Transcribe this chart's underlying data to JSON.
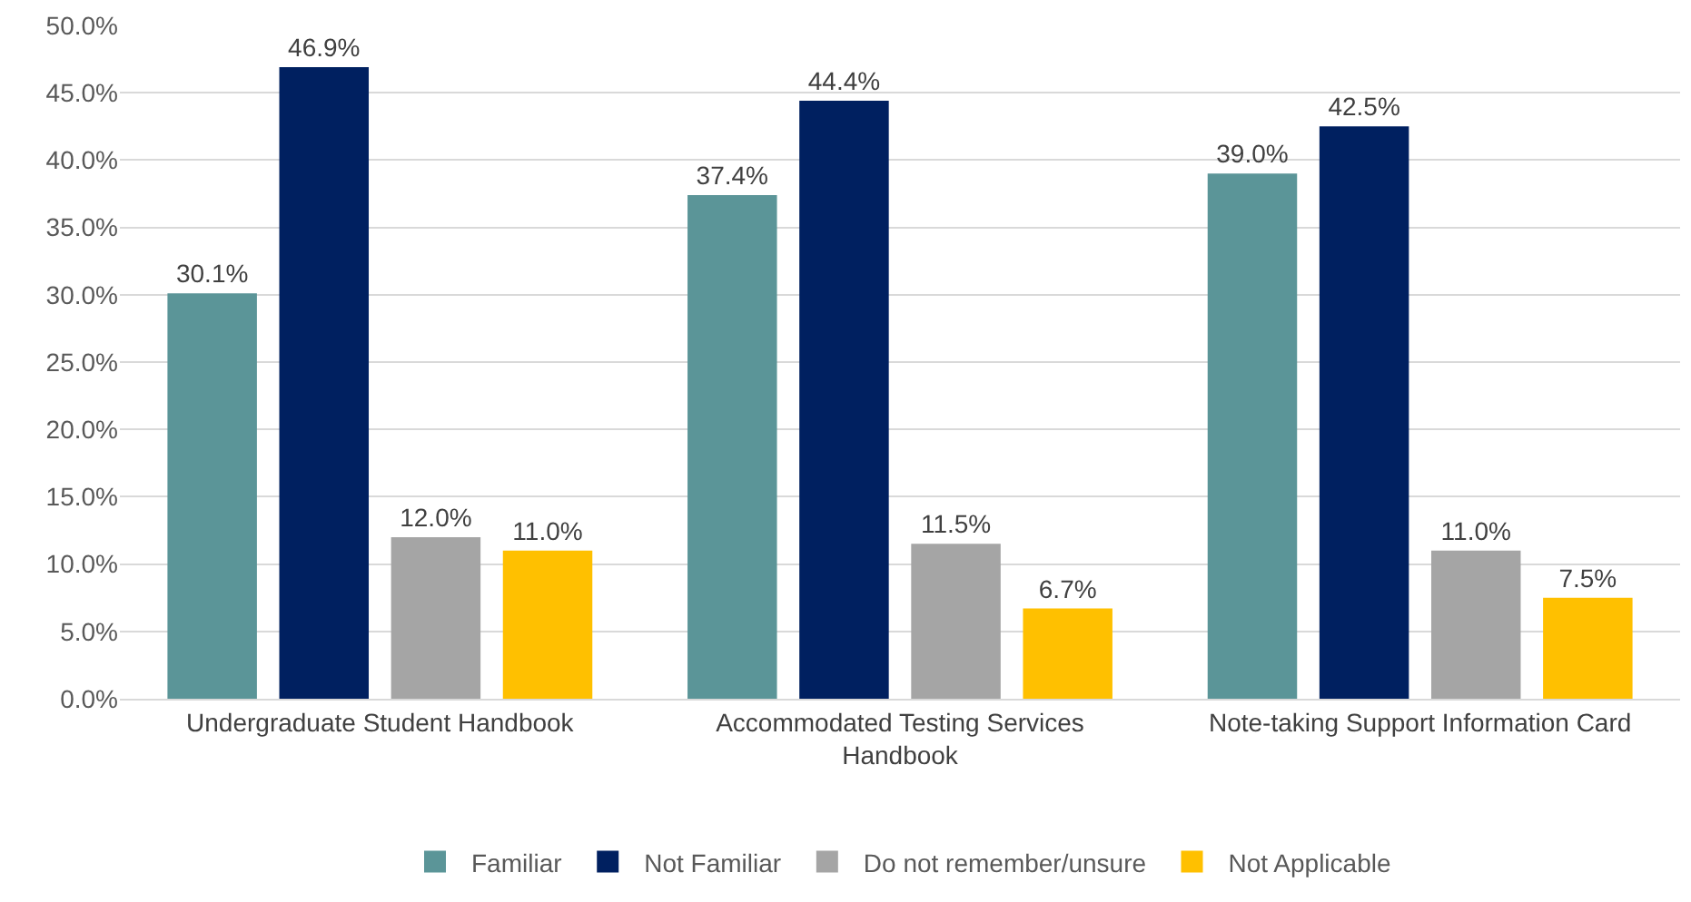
{
  "chart_data": {
    "type": "bar",
    "categories": [
      "Undergraduate Student Handbook",
      "Accommodated Testing Services\nHandbook",
      "Note-taking Support Information Card"
    ],
    "series": [
      {
        "name": "Familiar",
        "color": "#5b9598",
        "values": [
          30.1,
          37.4,
          39.0
        ],
        "value_labels": [
          "30.1%",
          "37.4%",
          "39.0%"
        ]
      },
      {
        "name": "Not Familiar",
        "color": "#002060",
        "values": [
          46.9,
          44.4,
          42.5
        ],
        "value_labels": [
          "46.9%",
          "44.4%",
          "42.5%"
        ]
      },
      {
        "name": "Do not remember/unsure",
        "color": "#a5a5a5",
        "values": [
          12.0,
          11.5,
          11.0
        ],
        "value_labels": [
          "12.0%",
          "11.5%",
          "11.0%"
        ]
      },
      {
        "name": "Not Applicable",
        "color": "#ffc000",
        "values": [
          11.0,
          6.7,
          7.5
        ],
        "value_labels": [
          "11.0%",
          "6.7%",
          "7.5%"
        ]
      }
    ],
    "ylim": [
      0,
      50
    ],
    "yticks": [
      {
        "value": 0,
        "label": "0.0%"
      },
      {
        "value": 5,
        "label": "5.0%"
      },
      {
        "value": 10,
        "label": "10.0%"
      },
      {
        "value": 15,
        "label": "15.0%"
      },
      {
        "value": 20,
        "label": "20.0%"
      },
      {
        "value": 25,
        "label": "25.0%"
      },
      {
        "value": 30,
        "label": "30.0%"
      },
      {
        "value": 35,
        "label": "35.0%"
      },
      {
        "value": 40,
        "label": "40.0%"
      },
      {
        "value": 45,
        "label": "45.0%"
      },
      {
        "value": 50,
        "label": "50.0%"
      }
    ],
    "grid": "y",
    "legend": "bottom"
  }
}
